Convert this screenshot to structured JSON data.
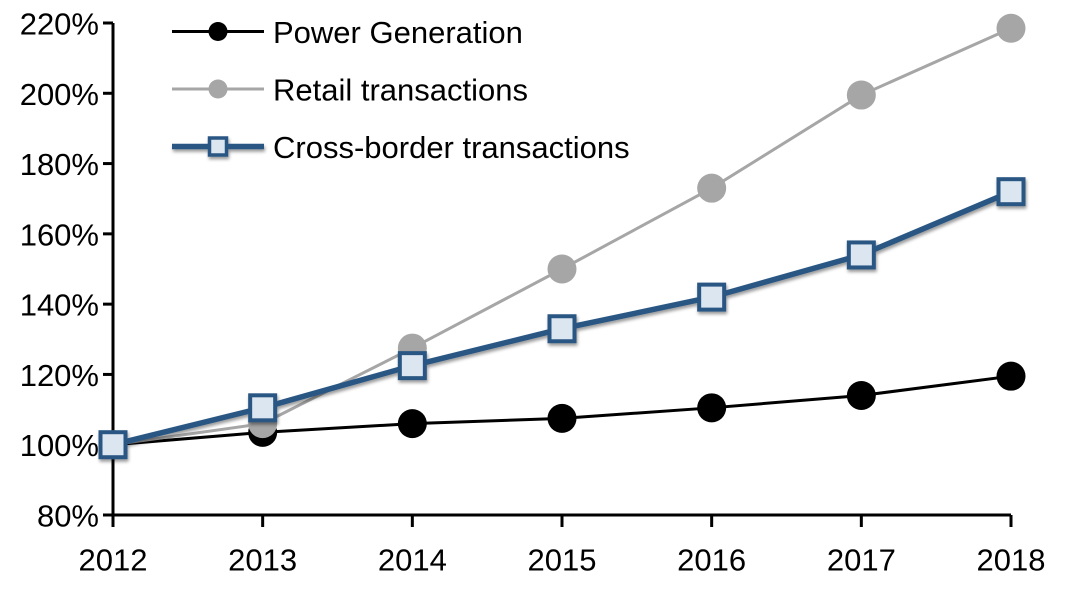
{
  "chart_data": {
    "type": "line",
    "title": "",
    "xlabel": "",
    "ylabel": "",
    "grid": false,
    "background": "#FFFFFF",
    "axis_color": "#000000",
    "x_axis": {
      "tick_labels": [
        "2012",
        "2013",
        "2014",
        "2015",
        "2016",
        "2017",
        "2018"
      ]
    },
    "y_axis": {
      "min": 80,
      "max": 220,
      "step": 20,
      "format": "percent",
      "tick_labels": [
        "80%",
        "100%",
        "120%",
        "140%",
        "160%",
        "180%",
        "200%",
        "220%"
      ]
    },
    "series": [
      {
        "name": "Power Generation",
        "values": [
          100,
          103.5,
          106,
          107.5,
          110.5,
          114,
          119.5
        ],
        "line_color": "#000000",
        "line_width": 3,
        "marker": "circle",
        "marker_fill": "#000000",
        "marker_stroke": "none"
      },
      {
        "name": "Retail transactions",
        "values": [
          100,
          106,
          127.5,
          150,
          173,
          199.5,
          218.5
        ],
        "line_color": "#A6A6A6",
        "line_width": 3,
        "marker": "circle",
        "marker_fill": "#A6A6A6",
        "marker_stroke": "none"
      },
      {
        "name": "Cross-border transactions",
        "values": [
          100,
          110.5,
          122.5,
          133,
          142,
          154,
          172
        ],
        "line_color": "#2A5783",
        "line_width": 5.5,
        "marker": "square",
        "marker_fill": "#DCE6F1",
        "marker_stroke": "#2A5783"
      }
    ],
    "legend": {
      "position": "top-left-inside",
      "items": [
        "Power Generation",
        "Retail transactions",
        "Cross-border transactions"
      ]
    }
  }
}
